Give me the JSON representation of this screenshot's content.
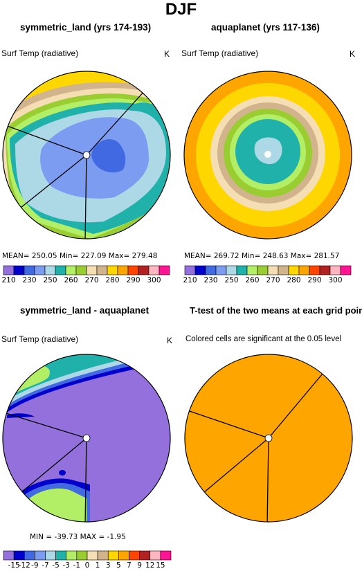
{
  "figure": {
    "title": "DJF"
  },
  "panels": {
    "p1": {
      "title": "symmetric_land (yrs 174-193)",
      "variable": "Surf Temp (radiative)",
      "units": "K",
      "stats": "MEAN= 250.05   Min= 227.09   Max= 279.48"
    },
    "p2": {
      "title": "aquaplanet (yrs 117-136)",
      "variable": "Surf Temp (radiative)",
      "units": "K",
      "stats": "MEAN= 269.72   Min= 248.63   Max= 281.57"
    },
    "p3": {
      "title": "symmetric_land - aquaplanet",
      "variable": "Surf Temp (radiative)",
      "units": "K",
      "stats": "MIN = -39.73  MAX =   -1.95"
    },
    "p4": {
      "title": "T-test of the two means at each grid point",
      "note": "Colored cells are significant at the 0.05 level"
    }
  },
  "chart_data": [
    {
      "type": "heatmap",
      "projection": "polar",
      "title": "symmetric_land (yrs 174-193)",
      "variable": "Surf Temp (radiative)",
      "units": "K",
      "mean": 250.05,
      "min": 227.09,
      "max": 279.48,
      "colorbar": {
        "tick_labels": [
          "210",
          "230",
          "250",
          "260",
          "270",
          "280",
          "290",
          "300"
        ],
        "colors": [
          "#9370db",
          "#0000cd",
          "#4169e1",
          "#7b9cf0",
          "#add8e6",
          "#20b2aa",
          "#b2ee66",
          "#9acd32",
          "#f5deb3",
          "#d2b48c",
          "#ffd700",
          "#ffa500",
          "#ff4500",
          "#b22222",
          "#ffb6c1",
          "#ff1493"
        ]
      }
    },
    {
      "type": "heatmap",
      "projection": "polar",
      "title": "aquaplanet (yrs 117-136)",
      "variable": "Surf Temp (radiative)",
      "units": "K",
      "mean": 269.72,
      "min": 248.63,
      "max": 281.57,
      "colorbar": {
        "tick_labels": [
          "210",
          "230",
          "250",
          "260",
          "270",
          "280",
          "290",
          "300"
        ],
        "colors": [
          "#9370db",
          "#0000cd",
          "#4169e1",
          "#7b9cf0",
          "#add8e6",
          "#20b2aa",
          "#b2ee66",
          "#9acd32",
          "#f5deb3",
          "#d2b48c",
          "#ffd700",
          "#ffa500",
          "#ff4500",
          "#b22222",
          "#ffb6c1",
          "#ff1493"
        ]
      }
    },
    {
      "type": "heatmap",
      "projection": "polar",
      "title": "symmetric_land - aquaplanet",
      "variable": "Surf Temp (radiative)",
      "units": "K",
      "min": -39.73,
      "max": -1.95,
      "colorbar": {
        "tick_labels": [
          "-15",
          "-12",
          "-9",
          "-7",
          "-5",
          "-3",
          "-1",
          "0",
          "1",
          "3",
          "5",
          "7",
          "9",
          "12",
          "15"
        ],
        "colors": [
          "#9370db",
          "#0000cd",
          "#4169e1",
          "#7b9cf0",
          "#add8e6",
          "#20b2aa",
          "#b2ee66",
          "#9acd32",
          "#f5deb3",
          "#d2b48c",
          "#ffd700",
          "#ffa500",
          "#ff4500",
          "#b22222",
          "#ffb6c1",
          "#ff1493"
        ]
      }
    },
    {
      "type": "heatmap",
      "projection": "polar",
      "title": "T-test of the two means at each grid point",
      "note": "Colored cells are significant at the 0.05 level",
      "fill_color": "#ffa500"
    }
  ]
}
